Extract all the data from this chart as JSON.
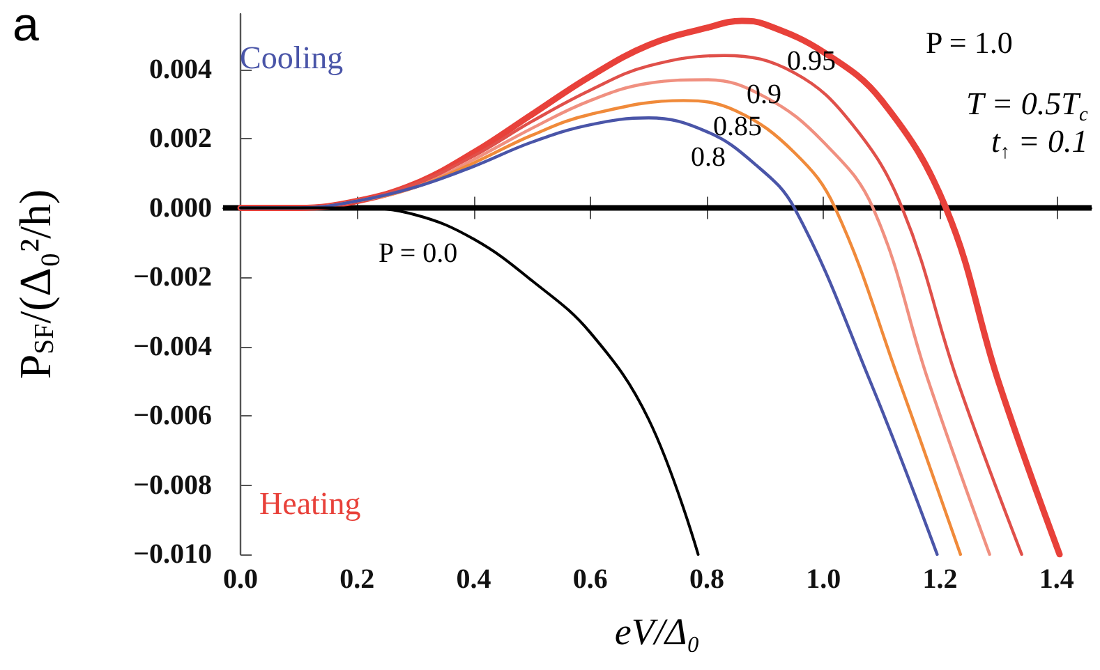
{
  "chart_data": {
    "type": "line",
    "title": "a",
    "xlabel": "eV/Δ₀",
    "ylabel": "P$_{SF}$/(Δ₀²/h)",
    "xlim": [
      -0.03,
      1.46
    ],
    "ylim": [
      -0.01,
      0.0056
    ],
    "xticks": [
      {
        "value": 0,
        "label": "0.0"
      },
      {
        "value": 0.2,
        "label": "0.2"
      },
      {
        "value": 0.4,
        "label": "0.4"
      },
      {
        "value": 0.6,
        "label": "0.6"
      },
      {
        "value": 0.8,
        "label": "0.8"
      },
      {
        "value": 1.0,
        "label": "1.0"
      },
      {
        "value": 1.2,
        "label": "1.2"
      },
      {
        "value": 1.4,
        "label": "1.4"
      }
    ],
    "yticks": [
      {
        "value": -0.01,
        "label": "−0.010"
      },
      {
        "value": -0.008,
        "label": "−0.008"
      },
      {
        "value": -0.006,
        "label": "−0.006"
      },
      {
        "value": -0.004,
        "label": "−0.004"
      },
      {
        "value": -0.002,
        "label": "−0.002"
      },
      {
        "value": 0,
        "label": "0.000"
      },
      {
        "value": 0.002,
        "label": "0.002"
      },
      {
        "value": 0.004,
        "label": "0.004"
      }
    ],
    "grid": false,
    "legend": false,
    "marker": "none",
    "line_style": "solid",
    "ref_lines": [
      {
        "axis": "y",
        "value": 0,
        "color": "#000000"
      }
    ],
    "series": [
      {
        "color": "#e8413a",
        "x": [
          0,
          0.1,
          0.2,
          0.3,
          0.4,
          0.5,
          0.6,
          0.7,
          0.8,
          0.86,
          0.9,
          1.0,
          1.1,
          1.21,
          1.3,
          1.405
        ],
        "values": [
          0,
          0,
          0.0002,
          0.0007,
          0.0016,
          0.0027,
          0.0038,
          0.0047,
          0.0052,
          0.0054,
          0.0053,
          0.0045,
          0.0031,
          0,
          -0.005,
          -0.01
        ]
      },
      {
        "color": "#e0504a",
        "x": [
          0,
          0.1,
          0.2,
          0.3,
          0.4,
          0.5,
          0.6,
          0.7,
          0.83,
          0.95,
          1.05,
          1.135,
          1.23,
          1.34
        ],
        "values": [
          0,
          0,
          0.0002,
          0.0007,
          0.0015,
          0.0025,
          0.0034,
          0.0041,
          0.0044,
          0.0039,
          0.0024,
          0,
          -0.005,
          -0.01
        ]
      },
      {
        "color": "#f09080",
        "x": [
          0,
          0.1,
          0.2,
          0.3,
          0.4,
          0.5,
          0.6,
          0.7,
          0.8,
          0.9,
          1.0,
          1.085,
          1.18,
          1.285
        ],
        "values": [
          0,
          0,
          0.0002,
          0.0006,
          0.0014,
          0.0023,
          0.0031,
          0.0036,
          0.0037,
          0.0032,
          0.0019,
          0,
          -0.005,
          -0.01
        ]
      },
      {
        "color": "#f08a3a",
        "x": [
          0,
          0.1,
          0.2,
          0.3,
          0.4,
          0.5,
          0.6,
          0.76,
          0.85,
          0.95,
          1.02,
          1.13,
          1.235
        ],
        "values": [
          0,
          0,
          0.0002,
          0.0006,
          0.0013,
          0.0021,
          0.0027,
          0.0031,
          0.0028,
          0.0016,
          0,
          -0.005,
          -0.01
        ]
      },
      {
        "color": "#4a55a8",
        "x": [
          0,
          0.1,
          0.2,
          0.3,
          0.4,
          0.5,
          0.6,
          0.7,
          0.8,
          0.88,
          0.95,
          1.08,
          1.195
        ],
        "values": [
          0,
          0,
          0.0002,
          0.0006,
          0.0012,
          0.0019,
          0.0024,
          0.0026,
          0.0022,
          0.0013,
          0,
          -0.005,
          -0.01
        ]
      },
      {
        "color": "#000000",
        "x": [
          0,
          0.2,
          0.3,
          0.4,
          0.5,
          0.6,
          0.7,
          0.785
        ],
        "values": [
          0,
          0,
          -0.0002,
          -0.0009,
          -0.0021,
          -0.0036,
          -0.0061,
          -0.01
        ]
      }
    ],
    "annotations": [
      "Cooling",
      "Heating",
      "T = 0.5T$_{c}$",
      "t$_{↑}$ = 0.1",
      "P = 1.0",
      "0.95",
      "0.9",
      "0.85",
      "0.8",
      "P = 0.0"
    ]
  }
}
